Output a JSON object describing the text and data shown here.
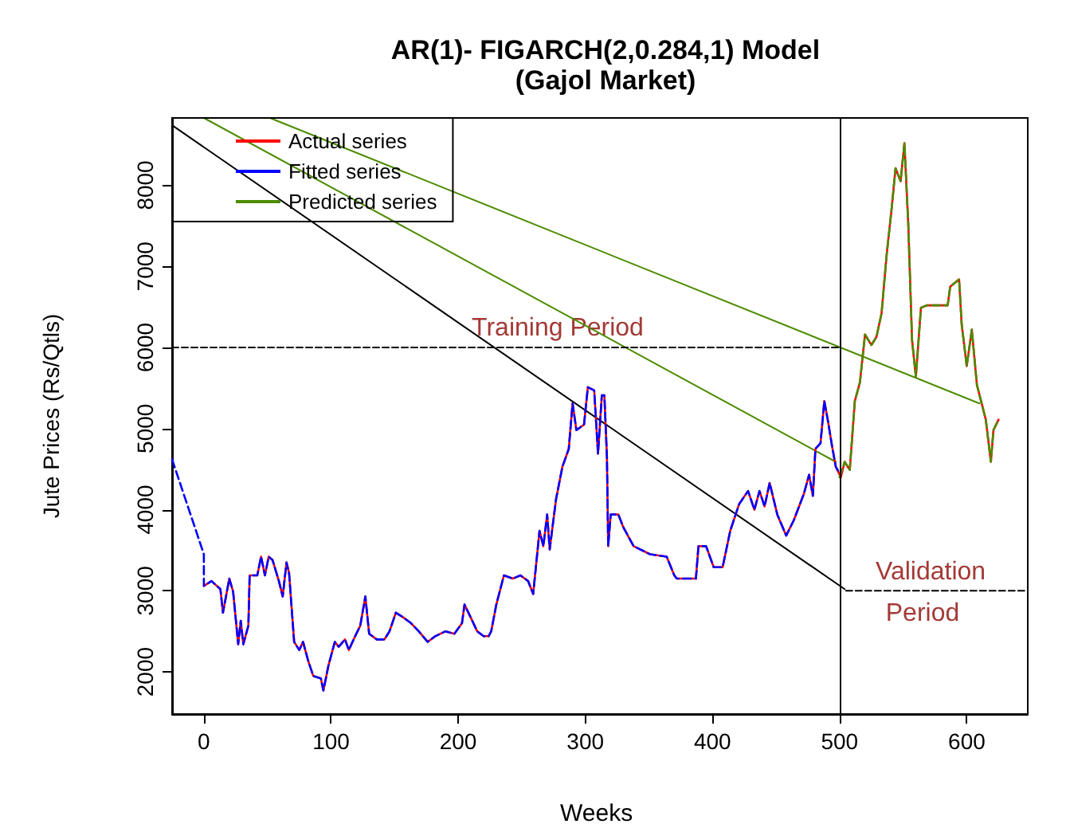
{
  "chart_data": {
    "type": "line",
    "title": "AR(1)- FIGARCH(2,0.284,1) Model",
    "subtitle": "(Gajol Market)",
    "xlabel": "Weeks",
    "ylabel": "Jute Prices (Rs/Qtls)",
    "xlim": [
      -25,
      648
    ],
    "xticks": [
      0,
      100,
      200,
      300,
      400,
      500,
      600
    ],
    "ylim": [
      1480,
      8830
    ],
    "yticks": [
      2000,
      3000,
      4000,
      5000,
      6000,
      7000,
      8000
    ],
    "grid": false,
    "legend": "top left",
    "marker": "none",
    "series": [
      {
        "name": "Actual series",
        "color": "#ff0000",
        "line_style": "solid",
        "x": [
          0,
          6,
          13,
          15,
          20,
          23,
          27,
          29,
          31,
          35,
          36,
          42,
          45,
          48,
          51,
          54,
          59,
          62,
          65,
          67,
          71,
          75,
          78,
          82,
          86,
          92,
          94,
          98,
          103,
          106,
          111,
          114,
          119,
          123,
          127,
          130,
          136,
          142,
          146,
          151,
          157,
          163,
          169,
          176,
          182,
          190,
          197,
          203,
          205,
          209,
          215,
          220,
          224,
          226,
          230,
          236,
          243,
          249,
          255,
          259,
          264,
          267,
          270,
          272,
          277,
          282,
          287,
          290,
          293,
          299,
          302,
          307,
          310,
          313,
          315,
          317,
          318,
          320,
          326,
          330,
          338,
          351,
          364,
          370,
          372,
          387,
          389,
          395,
          401,
          408,
          414,
          421,
          428,
          433,
          437,
          441,
          445,
          451,
          458,
          464,
          472,
          476,
          479,
          481,
          485,
          488,
          491,
          494,
          497,
          501,
          504,
          508,
          512,
          516,
          520,
          525,
          529,
          533,
          537,
          541,
          544,
          548,
          551,
          554,
          557,
          560,
          564,
          569,
          585,
          587,
          594,
          596,
          600,
          604,
          608,
          615,
          619,
          621,
          625
        ],
        "values": [
          3060,
          3120,
          3020,
          2730,
          3150,
          2990,
          2340,
          2630,
          2340,
          2570,
          3190,
          3190,
          3420,
          3190,
          3420,
          3380,
          3120,
          2930,
          3350,
          3220,
          2370,
          2270,
          2370,
          2140,
          1950,
          1920,
          1770,
          2080,
          2370,
          2310,
          2400,
          2270,
          2440,
          2570,
          2930,
          2470,
          2400,
          2400,
          2500,
          2730,
          2670,
          2600,
          2500,
          2370,
          2440,
          2500,
          2470,
          2600,
          2830,
          2700,
          2500,
          2440,
          2440,
          2500,
          2830,
          3190,
          3150,
          3190,
          3120,
          2960,
          3740,
          3550,
          3940,
          3510,
          4130,
          4530,
          4750,
          5310,
          4980,
          5050,
          5510,
          5470,
          4690,
          5410,
          5410,
          4660,
          3550,
          3940,
          3940,
          3780,
          3550,
          3450,
          3420,
          3190,
          3150,
          3150,
          3550,
          3550,
          3290,
          3290,
          3740,
          4070,
          4230,
          4000,
          4230,
          4040,
          4330,
          3940,
          3680,
          3870,
          4200,
          4430,
          4170,
          4750,
          4820,
          5340,
          5080,
          4790,
          4530,
          4400,
          4590,
          4490,
          5340,
          5570,
          6160,
          6030,
          6130,
          6420,
          7140,
          7720,
          8210,
          8050,
          8520,
          7530,
          6090,
          5640,
          6490,
          6520,
          6520,
          6750,
          6840,
          6290,
          5770,
          6220,
          5540,
          5110,
          4590,
          4980,
          5110
        ]
      },
      {
        "name": "Fitted series",
        "color": "#0000ff",
        "line_style": "dashed",
        "x": [
          -25,
          0,
          0,
          6,
          13,
          15,
          20,
          23,
          27,
          29,
          31,
          35,
          36,
          42,
          45,
          48,
          51,
          54,
          59,
          62,
          65,
          67,
          71,
          75,
          78,
          82,
          86,
          92,
          94,
          98,
          103,
          106,
          111,
          114,
          119,
          123,
          127,
          130,
          136,
          142,
          146,
          151,
          157,
          163,
          169,
          176,
          182,
          190,
          197,
          203,
          205,
          209,
          215,
          220,
          224,
          226,
          230,
          236,
          243,
          249,
          255,
          259,
          264,
          267,
          270,
          272,
          277,
          282,
          287,
          290,
          293,
          299,
          302,
          307,
          310,
          313,
          315,
          317,
          318,
          320,
          326,
          330,
          338,
          351,
          364,
          370,
          372,
          387,
          389,
          395,
          401,
          408,
          414,
          421,
          428,
          433,
          437,
          441,
          445,
          451,
          458,
          464,
          472,
          476,
          479,
          481,
          485,
          488,
          491,
          494,
          497,
          500
        ],
        "values": [
          4620,
          3450,
          3060,
          3120,
          3020,
          2730,
          3150,
          2990,
          2340,
          2630,
          2340,
          2570,
          3190,
          3190,
          3420,
          3190,
          3420,
          3380,
          3120,
          2930,
          3350,
          3220,
          2370,
          2270,
          2370,
          2140,
          1950,
          1920,
          1770,
          2080,
          2370,
          2310,
          2400,
          2270,
          2440,
          2570,
          2930,
          2470,
          2400,
          2400,
          2500,
          2730,
          2670,
          2600,
          2500,
          2370,
          2440,
          2500,
          2470,
          2600,
          2830,
          2700,
          2500,
          2440,
          2440,
          2500,
          2830,
          3190,
          3150,
          3190,
          3120,
          2960,
          3740,
          3550,
          3940,
          3510,
          4130,
          4530,
          4750,
          5310,
          4980,
          5050,
          5510,
          5470,
          4690,
          5410,
          5410,
          4660,
          3550,
          3940,
          3940,
          3780,
          3550,
          3450,
          3420,
          3190,
          3150,
          3150,
          3550,
          3550,
          3290,
          3290,
          3740,
          4070,
          4230,
          4000,
          4230,
          4040,
          4330,
          3940,
          3680,
          3870,
          4200,
          4430,
          4170,
          4750,
          4820,
          5340,
          5080,
          4790,
          4530,
          4450
        ]
      },
      {
        "name": "Predicted series",
        "color": "#4d8b00",
        "line_style": "dashed",
        "x": [
          500,
          504,
          508,
          512,
          516,
          520,
          525,
          529,
          533,
          537,
          541,
          544,
          548,
          551,
          554,
          557,
          560,
          564,
          569,
          585,
          587,
          594,
          596,
          600,
          604,
          608,
          615,
          619,
          621,
          625
        ],
        "values": [
          4400,
          4590,
          4490,
          5340,
          5570,
          6160,
          6030,
          6130,
          6420,
          7140,
          7720,
          8210,
          8050,
          8520,
          7530,
          6090,
          5640,
          6490,
          6520,
          6520,
          6750,
          6840,
          6290,
          5770,
          6220,
          5540,
          5110,
          4590,
          4980,
          5110
        ]
      },
      {
        "color": "#000000",
        "line_style": "solid",
        "x": [
          -25,
          504
        ],
        "values": [
          8740,
          3020
        ]
      },
      {
        "color": "#4d8b00",
        "line_style": "solid",
        "x": [
          0,
          497
        ],
        "values": [
          8830,
          4590
        ]
      },
      {
        "color": "#4d8b00",
        "line_style": "solid",
        "x": [
          52,
          610
        ],
        "values": [
          8830,
          5310
        ]
      },
      {
        "color": "#000000",
        "line_style": "dashed",
        "x": [
          -25,
          500
        ],
        "values": [
          6000,
          6000
        ]
      },
      {
        "color": "#000000",
        "line_style": "dashed",
        "x": [
          505,
          648
        ],
        "values": [
          3000,
          3000
        ]
      }
    ],
    "ref_lines": [
      {
        "axis": "x",
        "value": 500,
        "color": "#000000",
        "line_style": "solid"
      }
    ],
    "annotations": [
      "Training Period",
      "Validation",
      "Period"
    ]
  }
}
